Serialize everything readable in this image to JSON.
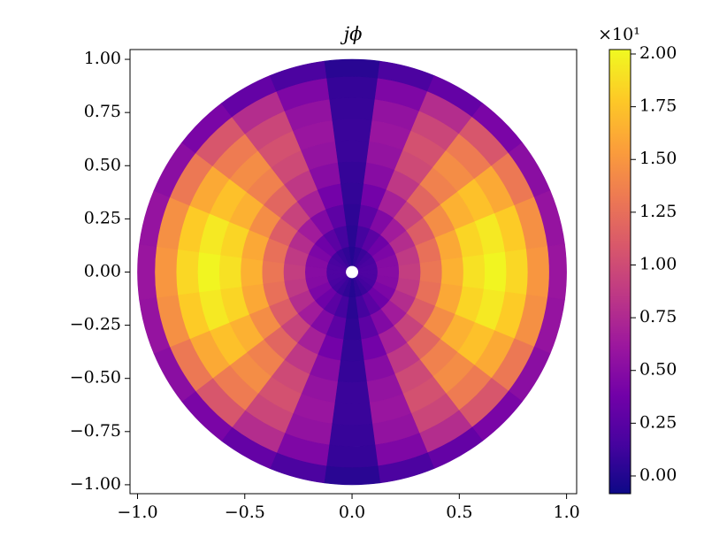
{
  "chart_data": {
    "type": "polar-heatmap",
    "title": "jϕ",
    "r_edges": [
      0.03,
      0.12,
      0.22,
      0.32,
      0.42,
      0.52,
      0.62,
      0.72,
      0.82,
      0.92,
      1.0
    ],
    "theta_edges": [
      -7.5,
      7.5,
      22.5,
      37.5,
      52.5,
      67.5,
      82.5,
      97.5,
      112.5,
      127.5,
      142.5,
      157.5,
      172.5,
      187.5,
      202.5,
      217.5,
      232.5,
      247.5,
      262.5,
      277.5,
      292.5,
      307.5,
      322.5,
      337.5,
      352.5
    ],
    "values": [
      [
        0.01,
        0.06,
        0.1,
        0.14,
        0.17,
        0.19,
        0.2,
        0.19,
        0.17,
        0.14,
        0.1,
        0.06,
        0.01,
        0.06,
        0.1,
        0.14,
        0.17,
        0.19,
        0.2,
        0.19,
        0.17,
        0.14,
        0.1,
        0.06
      ],
      [
        0.03,
        0.15,
        0.26,
        0.36,
        0.44,
        0.49,
        0.5,
        0.49,
        0.44,
        0.36,
        0.26,
        0.15,
        0.03,
        0.15,
        0.26,
        0.36,
        0.44,
        0.49,
        0.5,
        0.49,
        0.44,
        0.36,
        0.26,
        0.15
      ],
      [
        0.05,
        0.27,
        0.47,
        0.65,
        0.78,
        0.87,
        0.9,
        0.87,
        0.78,
        0.65,
        0.47,
        0.27,
        0.05,
        0.27,
        0.47,
        0.65,
        0.78,
        0.87,
        0.9,
        0.87,
        0.78,
        0.65,
        0.47,
        0.27
      ],
      [
        0.07,
        0.39,
        0.68,
        0.94,
        1.13,
        1.26,
        1.3,
        1.26,
        1.13,
        0.94,
        0.68,
        0.39,
        0.07,
        0.39,
        0.68,
        0.94,
        1.13,
        1.26,
        1.3,
        1.26,
        1.13,
        0.94,
        0.68,
        0.39
      ],
      [
        0.08,
        0.5,
        0.86,
        1.19,
        1.44,
        1.6,
        1.65,
        1.6,
        1.44,
        1.19,
        0.86,
        0.5,
        0.08,
        0.5,
        0.86,
        1.19,
        1.44,
        1.6,
        1.65,
        1.6,
        1.44,
        1.19,
        0.86,
        0.5
      ],
      [
        0.1,
        0.57,
        0.99,
        1.37,
        1.65,
        1.84,
        1.9,
        1.84,
        1.65,
        1.37,
        0.99,
        0.57,
        0.1,
        0.57,
        0.99,
        1.37,
        1.65,
        1.84,
        1.9,
        1.84,
        1.65,
        1.37,
        0.99,
        0.57
      ],
      [
        0.1,
        0.6,
        1.04,
        1.44,
        1.74,
        1.94,
        2.0,
        1.94,
        1.74,
        1.44,
        1.04,
        0.6,
        0.1,
        0.6,
        1.04,
        1.44,
        1.74,
        1.94,
        2.0,
        1.94,
        1.74,
        1.44,
        1.04,
        0.6
      ],
      [
        0.09,
        0.56,
        0.96,
        1.33,
        1.61,
        1.79,
        1.85,
        1.79,
        1.61,
        1.33,
        0.96,
        0.56,
        0.09,
        0.56,
        0.96,
        1.33,
        1.61,
        1.79,
        1.85,
        1.79,
        1.61,
        1.33,
        0.96,
        0.56
      ],
      [
        0.08,
        0.45,
        0.78,
        1.08,
        1.31,
        1.46,
        1.5,
        1.46,
        1.31,
        1.08,
        0.78,
        0.45,
        0.08,
        0.45,
        0.78,
        1.08,
        1.31,
        1.46,
        1.5,
        1.46,
        1.31,
        1.08,
        0.78,
        0.45
      ],
      [
        0.03,
        0.18,
        0.31,
        0.43,
        0.52,
        0.58,
        0.6,
        0.58,
        0.52,
        0.43,
        0.31,
        0.18,
        0.03,
        0.18,
        0.31,
        0.43,
        0.52,
        0.58,
        0.6,
        0.58,
        0.52,
        0.43,
        0.31,
        0.18
      ]
    ],
    "xlim": [
      -1.035,
      1.047
    ],
    "ylim": [
      -1.042,
      1.046
    ],
    "xticks": [
      {
        "value": -1.0,
        "label": "−1.0"
      },
      {
        "value": -0.5,
        "label": "−0.5"
      },
      {
        "value": 0.0,
        "label": "0.0"
      },
      0.5,
      {
        "value": 1.0,
        "label": "1.0"
      }
    ],
    "yticks": [
      {
        "value": 1.0,
        "label": "1.00"
      },
      {
        "value": 0.75,
        "label": "0.75"
      },
      {
        "value": 0.5,
        "label": "0.50"
      },
      {
        "value": 0.25,
        "label": "0.25"
      },
      {
        "value": 0.0,
        "label": "0.00"
      },
      {
        "value": -0.25,
        "label": "−0.25"
      },
      {
        "value": -0.5,
        "label": "−0.50"
      },
      {
        "value": -0.75,
        "label": "−0.75"
      },
      {
        "value": -1.0,
        "label": "−1.00"
      }
    ],
    "colorbar": {
      "lim": [
        -0.084,
        2.021
      ],
      "offset_label": "×10¹",
      "ticks": [
        {
          "value": 0.0,
          "label": "0.00"
        },
        {
          "value": 0.25,
          "label": "0.25"
        },
        {
          "value": 0.5,
          "label": "0.50"
        },
        {
          "value": 0.75,
          "label": "0.75"
        },
        {
          "value": 1.0,
          "label": "1.00"
        },
        {
          "value": 1.25,
          "label": "1.25"
        },
        {
          "value": 1.5,
          "label": "1.50"
        },
        {
          "value": 1.75,
          "label": "1.75"
        },
        {
          "value": 2.0,
          "label": "2.00"
        }
      ]
    },
    "colormap": [
      "#0d0887",
      "#46039f",
      "#7201a8",
      "#9c179e",
      "#bd3786",
      "#d8576b",
      "#ed7953",
      "#fb9f3a",
      "#fdca26",
      "#f0f921"
    ]
  }
}
